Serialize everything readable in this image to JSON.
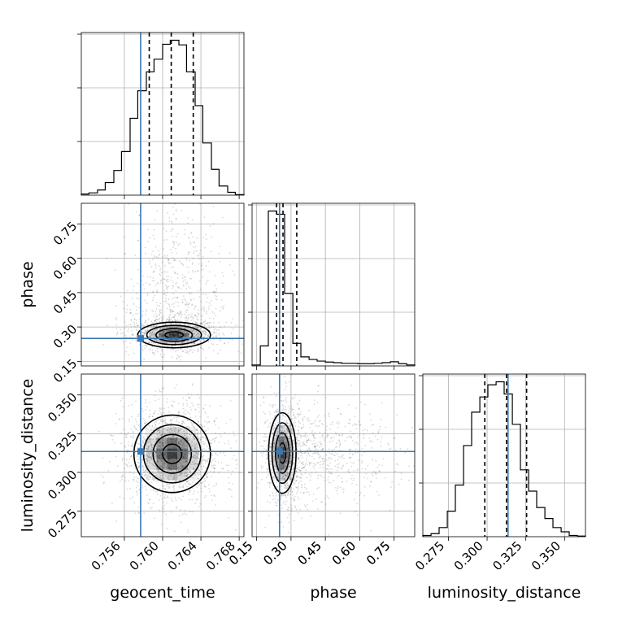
{
  "chart_data": {
    "type": "corner",
    "parameters": [
      {
        "key": "geocent_time",
        "label": "geocent_time",
        "range": [
          0.7515,
          0.7685
        ],
        "ticks": [
          0.756,
          0.76,
          0.764,
          0.768
        ],
        "tick_labels": [
          "0.756",
          "0.760",
          "0.764",
          "0.768"
        ],
        "truth": 0.7577,
        "quantiles": [
          0.7586,
          0.7609,
          0.7632
        ],
        "hist_bin_edges": [
          0.7515,
          0.7523,
          0.7532,
          0.754,
          0.7549,
          0.7557,
          0.7566,
          0.7574,
          0.7583,
          0.7591,
          0.76,
          0.7608,
          0.7617,
          0.7625,
          0.7634,
          0.7642,
          0.7651,
          0.7659,
          0.7668,
          0.7676,
          0.7685
        ],
        "hist_counts": [
          2,
          4,
          9,
          22,
          43,
          76,
          134,
          182,
          215,
          237,
          263,
          270,
          262,
          215,
          156,
          91,
          45,
          16,
          5,
          1
        ]
      },
      {
        "key": "phase",
        "label": "phase",
        "range": [
          0.13,
          0.84
        ],
        "ticks": [
          0.15,
          0.3,
          0.45,
          0.6,
          0.75
        ],
        "tick_labels": [
          "0.15",
          "0.30",
          "0.45",
          "0.60",
          "0.75"
        ],
        "truth": 0.25,
        "quantiles": [
          0.237,
          0.265,
          0.325
        ],
        "hist_bin_edges": [
          0.13,
          0.166,
          0.201,
          0.237,
          0.272,
          0.308,
          0.343,
          0.379,
          0.414,
          0.45,
          0.485,
          0.521,
          0.556,
          0.592,
          0.627,
          0.663,
          0.698,
          0.734,
          0.769,
          0.805,
          0.84
        ],
        "hist_counts": [
          3,
          62,
          480,
          470,
          225,
          70,
          28,
          20,
          15,
          12,
          10,
          8,
          8,
          7,
          7,
          8,
          10,
          13,
          7,
          3
        ]
      },
      {
        "key": "luminosity_distance",
        "label": "luminosity_distance",
        "range": [
          0.2585,
          0.3635
        ],
        "ticks": [
          0.275,
          0.3,
          0.325,
          0.35
        ],
        "tick_labels": [
          "0.275",
          "0.300",
          "0.325",
          "0.350"
        ],
        "truth": 0.3135,
        "quantiles": [
          0.2985,
          0.3125,
          0.3255
        ],
        "hist_bin_edges": [
          0.2585,
          0.2638,
          0.269,
          0.2743,
          0.2795,
          0.2848,
          0.29,
          0.2953,
          0.3005,
          0.3058,
          0.311,
          0.3163,
          0.3215,
          0.3268,
          0.332,
          0.3373,
          0.3425,
          0.3478,
          0.353,
          0.3583,
          0.3635
        ],
        "hist_counts": [
          2,
          5,
          15,
          42,
          85,
          150,
          205,
          230,
          250,
          255,
          235,
          185,
          110,
          75,
          48,
          30,
          15,
          8,
          2,
          1
        ]
      }
    ],
    "truth_color": "#3b78b4",
    "grid": true,
    "pairs": [
      {
        "x": "geocent_time",
        "y": "phase",
        "density_peak": [
          0.7612,
          0.265
        ],
        "density_spread": [
          0.0019,
          0.028
        ],
        "scatter_spread_y": 0.13
      },
      {
        "x": "geocent_time",
        "y": "luminosity_distance",
        "density_peak": [
          0.761,
          0.312
        ],
        "density_spread": [
          0.002,
          0.0125
        ],
        "scatter_spread_y": 0.02
      },
      {
        "x": "phase",
        "y": "luminosity_distance",
        "density_peak": [
          0.262,
          0.3125
        ],
        "density_spread": [
          0.03,
          0.013
        ],
        "scatter_spread_y": 0.02
      }
    ]
  }
}
